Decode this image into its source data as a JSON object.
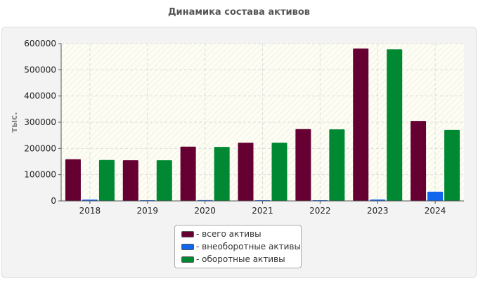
{
  "chart_data": {
    "type": "bar",
    "title": "Динамика состава активов",
    "xlabel": "",
    "ylabel": "тыс.",
    "categories": [
      "2018",
      "2019",
      "2020",
      "2021",
      "2022",
      "2023",
      "2024"
    ],
    "series": [
      {
        "name": "- всего активы",
        "color": "#660033",
        "values": [
          159000,
          155000,
          207000,
          222000,
          274000,
          581000,
          305000
        ]
      },
      {
        "name": "- внеоборотные активы",
        "color": "#1166ee",
        "values": [
          5000,
          2500,
          3000,
          2500,
          2500,
          5500,
          35000
        ]
      },
      {
        "name": "- оборотные активы",
        "color": "#008833",
        "values": [
          156000,
          155000,
          206000,
          222000,
          273000,
          578000,
          271000
        ]
      }
    ],
    "ylim": [
      0,
      600000
    ],
    "yticks": [
      0,
      100000,
      200000,
      300000,
      400000,
      500000,
      600000
    ],
    "grid": true,
    "legend_position": "bottom-center"
  }
}
